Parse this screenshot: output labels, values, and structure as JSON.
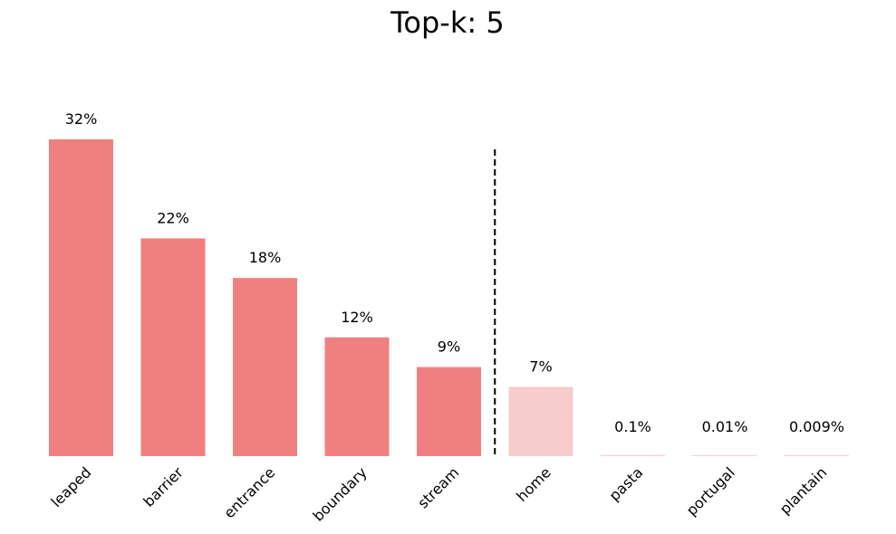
{
  "chart_data": {
    "type": "bar",
    "title": "Top-k: 5",
    "xlabel": "",
    "ylabel": "",
    "ylim": [
      0,
      32
    ],
    "categories": [
      "leaped",
      "barrier",
      "entrance",
      "boundary",
      "stream",
      "home",
      "pasta",
      "portugal",
      "plantain"
    ],
    "values": [
      32,
      22,
      18,
      12,
      9,
      7,
      0.1,
      0.01,
      0.009
    ],
    "value_labels": [
      "32%",
      "22%",
      "18%",
      "12%",
      "9%",
      "7%",
      "0.1%",
      "0.01%",
      "0.009%"
    ],
    "top_k": 5,
    "colors": {
      "selected": "#f08080",
      "unselected": "#f7cccc",
      "cutoff_line": "#000000"
    },
    "grid": false,
    "legend": "none"
  }
}
